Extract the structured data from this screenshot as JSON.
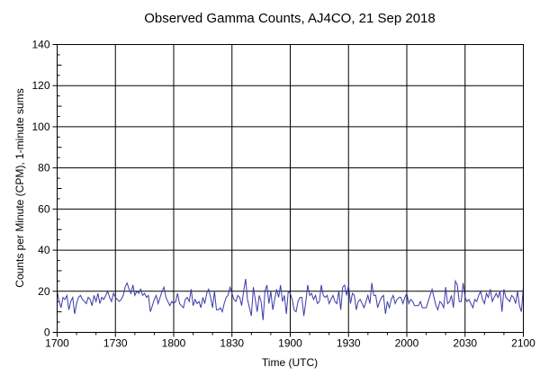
{
  "chart_data": {
    "type": "line",
    "title": "Observed Gamma Counts, AJ4CO, 21 Sep 2018",
    "xlabel": "Time (UTC)",
    "ylabel": "Counts per Minute (CPM), 1-minute sums",
    "x_tick_labels": [
      "1700",
      "1730",
      "1800",
      "1830",
      "1900",
      "1930",
      "2000",
      "2030",
      "2100"
    ],
    "xlim": [
      "1700",
      "2100"
    ],
    "x_interval_minutes": 1,
    "y_ticks": [
      0,
      20,
      40,
      60,
      80,
      100,
      120,
      140
    ],
    "ylim": [
      0,
      140
    ],
    "grid": true,
    "line_color": "#3a3aa8",
    "series": [
      {
        "values": [
          20,
          15,
          12,
          17,
          16,
          18,
          11,
          15,
          17,
          9,
          14,
          17,
          18,
          16,
          15,
          14,
          17,
          16,
          13,
          18,
          15,
          19,
          14,
          17,
          16,
          18,
          20,
          17,
          15,
          19,
          17,
          16,
          15,
          16,
          18,
          22,
          24,
          21,
          19,
          23,
          18,
          20,
          19,
          21,
          18,
          19,
          17,
          18,
          10,
          13,
          16,
          18,
          14,
          17,
          20,
          22,
          17,
          15,
          13,
          15,
          14,
          15,
          19,
          14,
          13,
          12,
          16,
          17,
          15,
          21,
          13,
          16,
          14,
          15,
          12,
          17,
          14,
          19,
          21,
          17,
          12,
          20,
          11,
          11,
          12,
          10,
          14,
          17,
          18,
          22,
          19,
          16,
          15,
          18,
          17,
          13,
          20,
          26,
          16,
          12,
          8,
          22,
          16,
          10,
          18,
          15,
          6,
          20,
          23,
          14,
          20,
          11,
          16,
          21,
          17,
          23,
          15,
          18,
          9,
          20,
          19,
          16,
          11,
          10,
          15,
          17,
          17,
          8,
          15,
          23,
          18,
          19,
          16,
          18,
          14,
          15,
          23,
          18,
          17,
          18,
          14,
          16,
          18,
          15,
          14,
          20,
          11,
          22,
          23,
          18,
          23,
          14,
          19,
          18,
          11,
          15,
          16,
          14,
          12,
          15,
          18,
          14,
          24,
          18,
          18,
          12,
          15,
          17,
          18,
          9,
          15,
          12,
          16,
          18,
          14,
          16,
          17,
          17,
          14,
          17,
          19,
          14,
          16,
          15,
          13,
          13,
          13,
          15,
          12,
          12,
          12,
          15,
          18,
          21,
          17,
          13,
          11,
          15,
          14,
          12,
          22,
          14,
          15,
          18,
          12,
          25,
          23,
          15,
          15,
          24,
          17,
          15,
          16,
          14,
          12,
          16,
          15,
          18,
          20,
          16,
          14,
          19,
          17,
          21,
          15,
          17,
          19,
          17,
          20,
          10,
          21,
          17,
          16,
          15,
          18,
          17,
          14,
          20,
          13,
          10,
          22
        ]
      }
    ]
  }
}
